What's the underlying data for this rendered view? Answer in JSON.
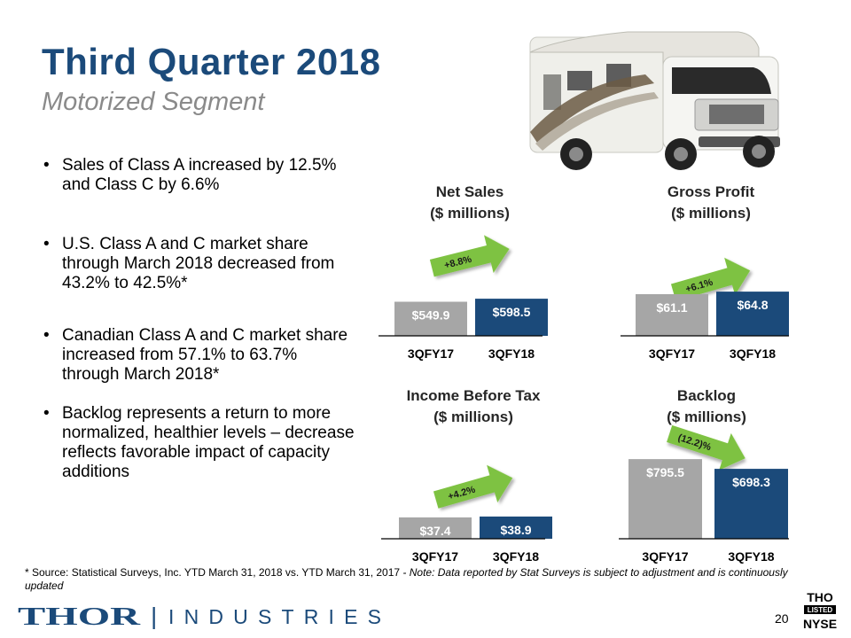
{
  "header": {
    "title": "Third Quarter 2018",
    "subtitle": "Motorized Segment"
  },
  "bullets": [
    "Sales of Class A increased by 12.5% and Class C by 6.6%",
    "U.S. Class A and C market share through March 2018 decreased from 43.2% to 42.5%*",
    "Canadian Class A and C market share increased from 57.1% to 63.7% through March 2018*",
    "Backlog represents a return to more normalized, healthier levels – decrease reflects favorable impact of capacity additions"
  ],
  "chart_data": [
    {
      "type": "bar",
      "title": "Net Sales",
      "subtitle": "($ millions)",
      "categories": [
        "3QFY17",
        "3QFY18"
      ],
      "values": [
        549.9,
        598.5
      ],
      "labels": [
        "$549.9",
        "$598.5"
      ],
      "change": "+8.8%",
      "colors": [
        "#a6a6a6",
        "#1b4a7a"
      ]
    },
    {
      "type": "bar",
      "title": "Gross Profit",
      "subtitle": "($ millions)",
      "categories": [
        "3QFY17",
        "3QFY18"
      ],
      "values": [
        61.1,
        64.8
      ],
      "labels": [
        "$61.1",
        "$64.8"
      ],
      "change": "+6.1%",
      "colors": [
        "#a6a6a6",
        "#1b4a7a"
      ]
    },
    {
      "type": "bar",
      "title": "Income Before Tax",
      "subtitle": "($ millions)",
      "categories": [
        "3QFY17",
        "3QFY18"
      ],
      "values": [
        37.4,
        38.9
      ],
      "labels": [
        "$37.4",
        "$38.9"
      ],
      "change": "+4.2%",
      "colors": [
        "#a6a6a6",
        "#1b4a7a"
      ]
    },
    {
      "type": "bar",
      "title": "Backlog",
      "subtitle": "($ millions)",
      "categories": [
        "3QFY17",
        "3QFY18"
      ],
      "values": [
        795.5,
        698.3
      ],
      "labels": [
        "$795.5",
        "$698.3"
      ],
      "change": "(12.2)%",
      "colors": [
        "#a6a6a6",
        "#1b4a7a"
      ]
    }
  ],
  "footnote": {
    "source": "* Source: Statistical Surveys, Inc. YTD March 31, 2018 vs. YTD March 31, 2017",
    "note": " - Note: Data reported by Stat Surveys is subject to adjustment and is continuously updated"
  },
  "logo": {
    "brand": "THOR",
    "divider": "|",
    "name": "INDUSTRIES"
  },
  "page_number": "20",
  "nyse": {
    "ticker": "THO",
    "listed": "LISTED",
    "exchange": "NYSE"
  },
  "colors": {
    "brand_navy": "#1b4a7a",
    "bar_gray": "#a6a6a6",
    "arrow_green": "#7ec242",
    "subtitle_gray": "#8a8a8a"
  }
}
